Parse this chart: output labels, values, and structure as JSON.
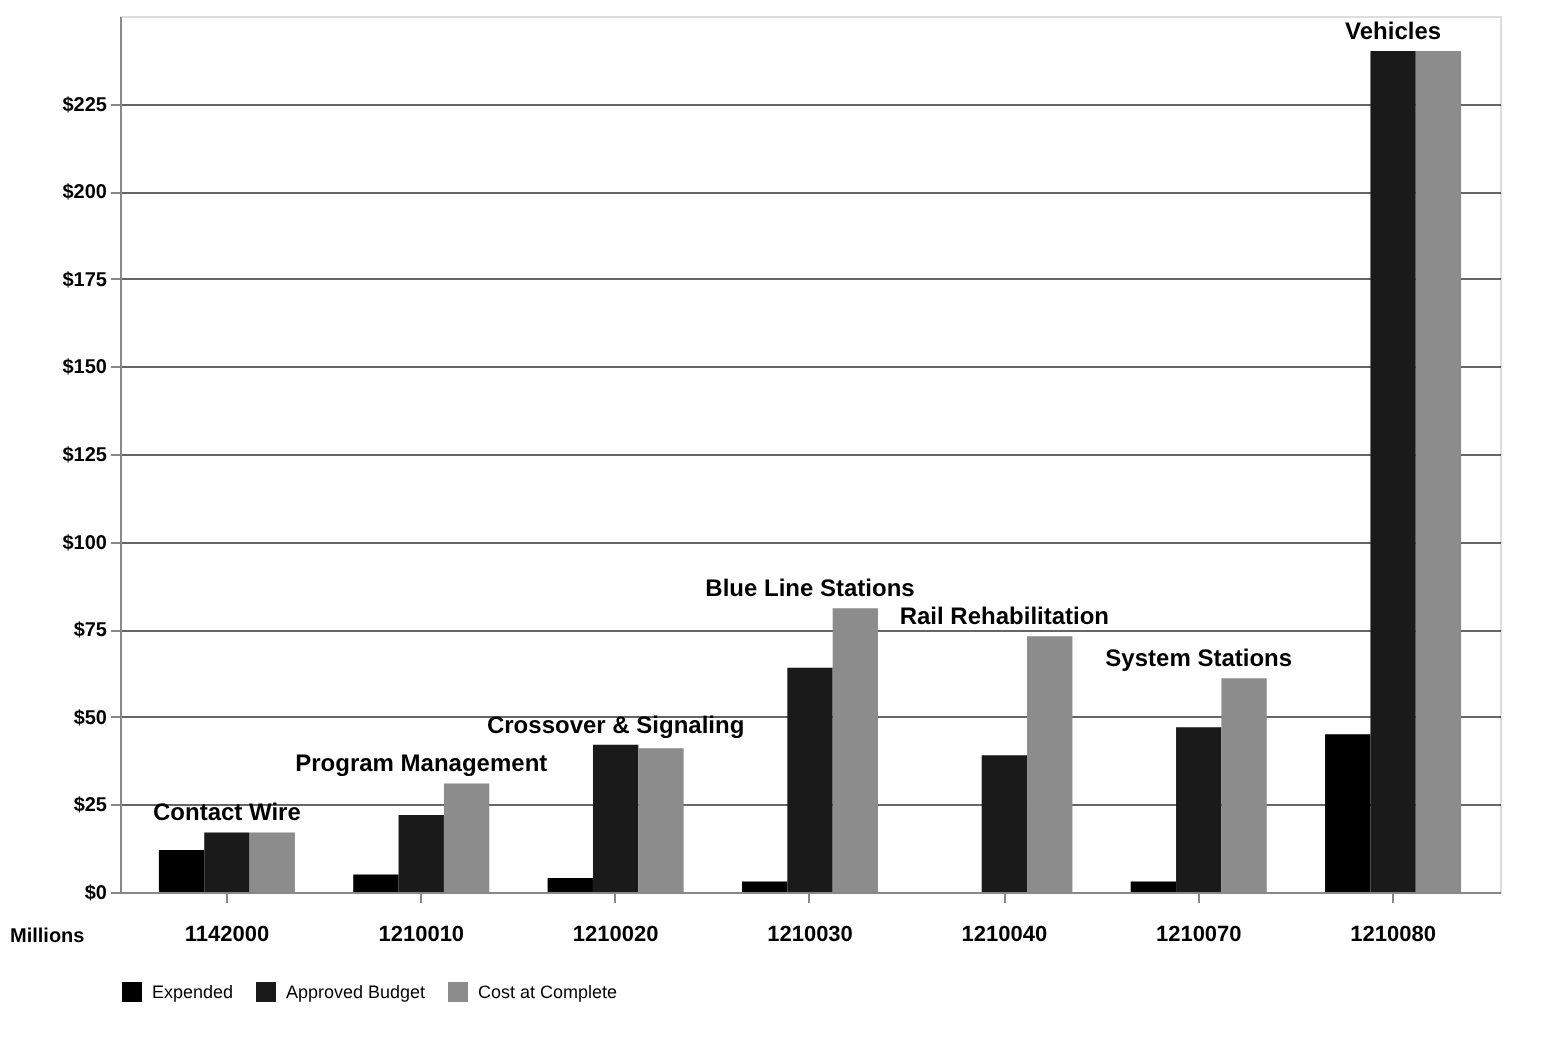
{
  "chart_data": {
    "type": "bar",
    "categories": [
      "1142000",
      "1210010",
      "1210020",
      "1210030",
      "1210040",
      "1210070",
      "1210080"
    ],
    "series": [
      {
        "name": "Expended",
        "color": "#000000",
        "values": [
          12,
          5,
          4,
          3,
          0,
          3,
          45
        ]
      },
      {
        "name": "Approved Budget",
        "color": "#1a1a1a",
        "values": [
          17,
          22,
          42,
          64,
          39,
          47,
          240
        ]
      },
      {
        "name": "Cost at Complete",
        "color": "#8c8c8c",
        "values": [
          17,
          31,
          41,
          81,
          73,
          61,
          240
        ]
      }
    ],
    "ylim": [
      0,
      250
    ],
    "yticks": [
      {
        "value": 0,
        "label": "$0"
      },
      {
        "value": 25,
        "label": "$25"
      },
      {
        "value": 50,
        "label": "$50"
      },
      {
        "value": 75,
        "label": "$75"
      },
      {
        "value": 100,
        "label": "$100"
      },
      {
        "value": 125,
        "label": "$125"
      },
      {
        "value": 150,
        "label": "$150"
      },
      {
        "value": 175,
        "label": "$175"
      },
      {
        "value": 200,
        "label": "$200"
      },
      {
        "value": 225,
        "label": "$225"
      }
    ],
    "annotations": [
      "Contact Wire",
      "Program Management",
      "Crossover & Signaling",
      "Blue Line Stations",
      "Rail Rehabilitation",
      "System Stations",
      "Vehicles",
      "Millions"
    ],
    "grid": "y",
    "legend": "bottom"
  }
}
